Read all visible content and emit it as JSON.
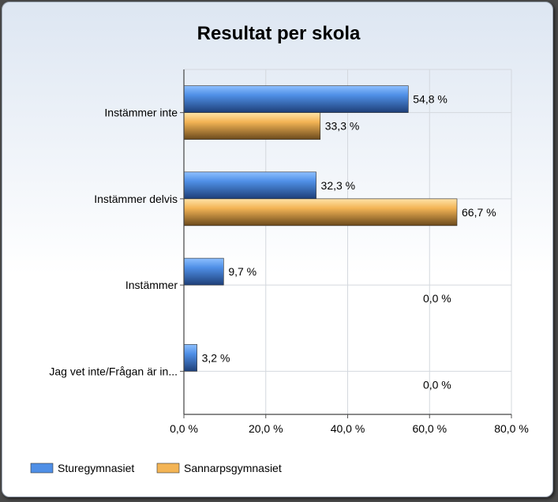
{
  "chart_data": {
    "type": "bar",
    "orientation": "horizontal",
    "title": "Resultat per skola",
    "categories": [
      "Instämmer inte",
      "Instämmer delvis",
      "Instämmer",
      "Jag vet inte/Frågan är in..."
    ],
    "series": [
      {
        "name": "Sturegymnasiet",
        "values": [
          54.8,
          32.3,
          9.7,
          3.2
        ],
        "labels": [
          "54,8 %",
          "32,3 %",
          "9,7 %",
          "3,2 %"
        ],
        "color": "#4f8fe6"
      },
      {
        "name": "Sannarpsgymnasiet",
        "values": [
          33.3,
          66.7,
          0.0,
          0.0
        ],
        "labels": [
          "33,3 %",
          "66,7 %",
          "0,0 %",
          "0,0 %"
        ],
        "color": "#f3b455"
      }
    ],
    "xlim": [
      0,
      80
    ],
    "xticks": [
      0,
      20,
      40,
      60,
      80
    ],
    "xtick_labels": [
      "0,0 %",
      "20,0 %",
      "40,0 %",
      "60,0 %",
      "80,0 %"
    ],
    "grid": true,
    "legend_position": "bottom-left"
  }
}
